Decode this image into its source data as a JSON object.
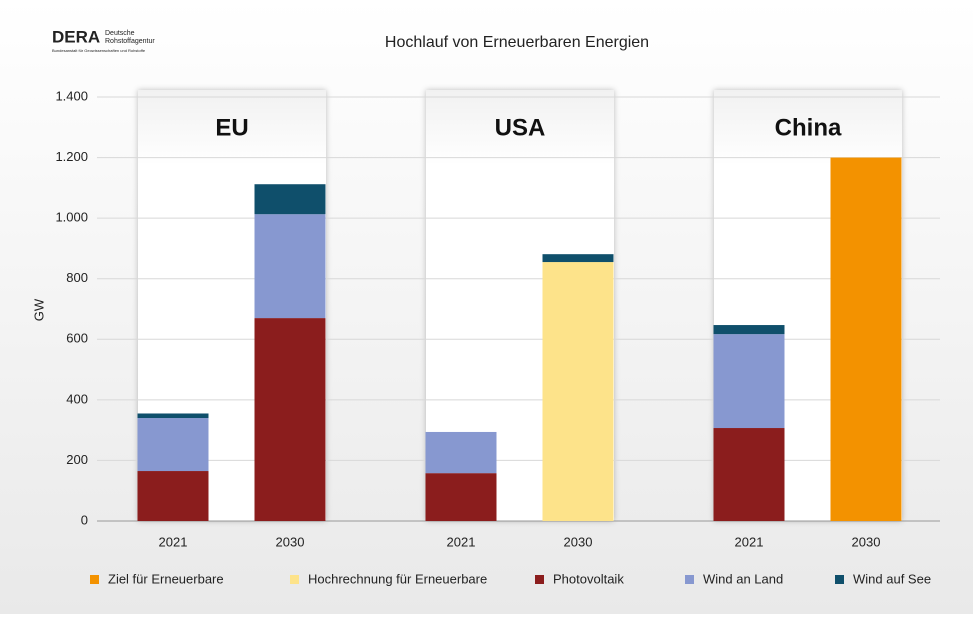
{
  "logo": {
    "name": "DERA",
    "line1": "Deutsche",
    "line2": "Rohstoffagentur",
    "line3": "Bundesanstalt für Geowissenschaften und Rohstoffe"
  },
  "chart_data": {
    "type": "stacked_bar",
    "title": "Hochlauf von Erneuerbaren Energien",
    "y_label": "GW",
    "groups": [
      "EU",
      "USA",
      "China"
    ],
    "categories": [
      "2021",
      "2030",
      "2021",
      "2030",
      "2021",
      "2030"
    ],
    "series": [
      {
        "name": "Ziel für Erneuerbare",
        "color": "#f39200",
        "values": [
          null,
          null,
          null,
          null,
          null,
          1200
        ]
      },
      {
        "name": "Hochrechnung für Erneuerbare",
        "color": "#fde38a",
        "values": [
          null,
          null,
          null,
          855,
          null,
          null
        ]
      },
      {
        "name": "Photovoltaik",
        "color": "#8b1d1d",
        "values": [
          165,
          670,
          158,
          null,
          307,
          null
        ]
      },
      {
        "name": "Wind an Land",
        "color": "#8798d0",
        "values": [
          175,
          343,
          136,
          null,
          310,
          null
        ]
      },
      {
        "name": "Wind auf See",
        "color": "#0f4f6b",
        "values": [
          15,
          99,
          null,
          26,
          30,
          null
        ]
      }
    ],
    "ylim": [
      0,
      1400
    ],
    "yticks": [
      0,
      200,
      400,
      600,
      800,
      {
        "value": 1000,
        "label": "1.000"
      },
      {
        "value": 1200,
        "label": "1.200"
      },
      {
        "value": 1400,
        "label": "1.400"
      }
    ],
    "grid": true
  }
}
